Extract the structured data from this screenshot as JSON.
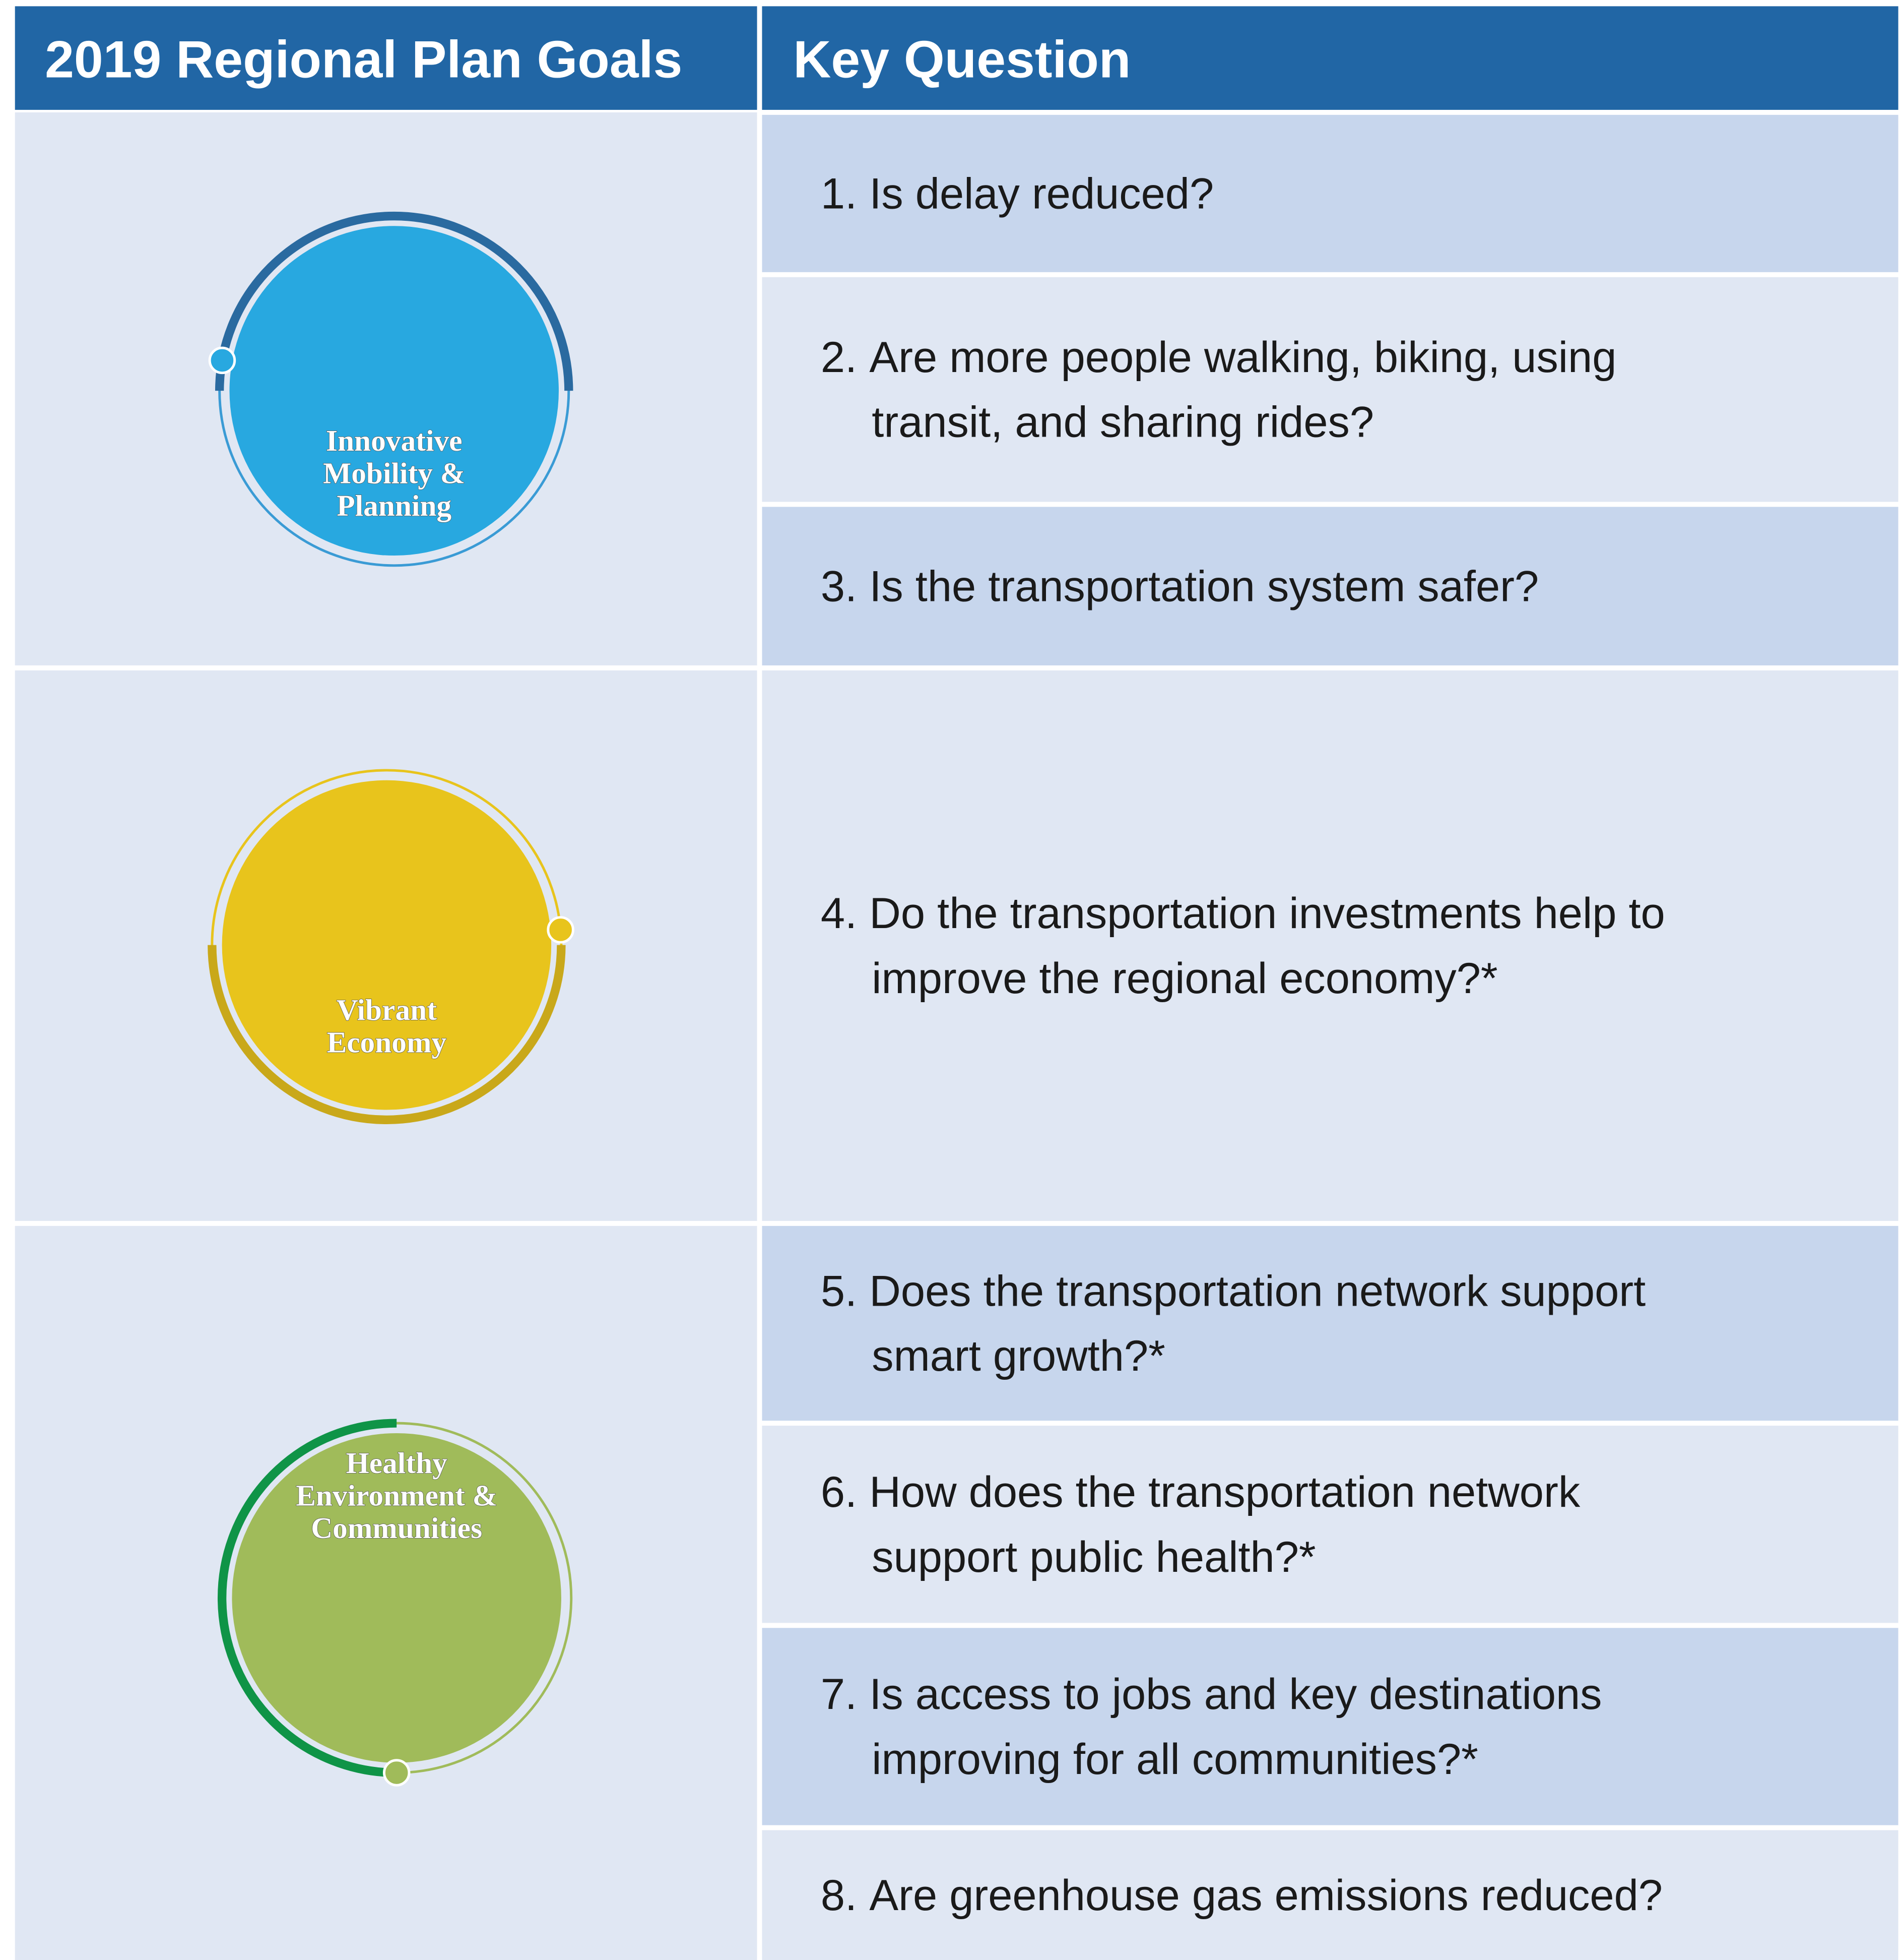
{
  "header": {
    "columns": [
      "2019 Regional Plan Goals",
      "Key Question"
    ]
  },
  "goals": [
    {
      "label": [
        "Innovative",
        "Mobility &",
        "Planning"
      ],
      "questions": [
        {
          "number": "1.",
          "lines": [
            "Is delay reduced?"
          ]
        },
        {
          "number": "2.",
          "lines": [
            "Are more people walking, biking, using",
            "transit, and sharing rides?"
          ]
        },
        {
          "number": "3.",
          "lines": [
            "Is the transportation system safer?"
          ]
        }
      ]
    },
    {
      "label": [
        "Vibrant",
        "Economy"
      ],
      "questions": [
        {
          "number": "4.",
          "lines": [
            "Do the transportation investments help to",
            "improve the regional economy?*"
          ]
        }
      ]
    },
    {
      "label": [
        "Healthy",
        "Environment &",
        "Communities"
      ],
      "questions": [
        {
          "number": "5.",
          "lines": [
            "Does the transportation network support",
            "smart growth?*"
          ]
        },
        {
          "number": "6.",
          "lines": [
            "How does the transportation network",
            "support public health?*"
          ]
        },
        {
          "number": "7.",
          "lines": [
            "Is access to jobs and key destinations",
            "improving for all communities?*"
          ]
        },
        {
          "number": "8.",
          "lines": [
            "Are greenhouse gas emissions reduced?"
          ]
        }
      ]
    }
  ]
}
